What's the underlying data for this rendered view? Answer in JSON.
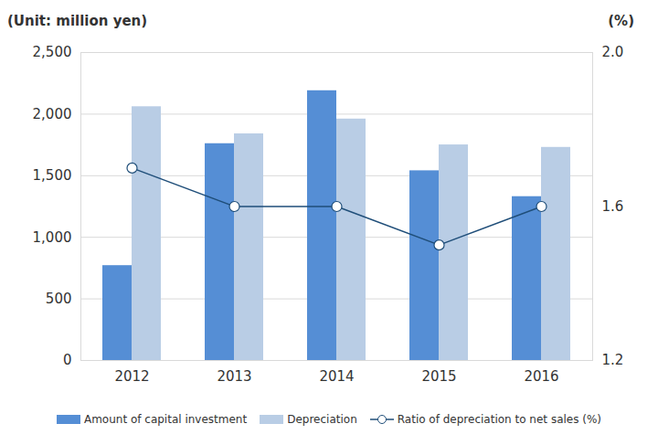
{
  "chart_data": {
    "type": "bar",
    "y_label": "(Unit: million yen)",
    "y2_label": "(%)",
    "categories": [
      "2012",
      "2013",
      "2014",
      "2015",
      "2016"
    ],
    "series": [
      {
        "name": "Amount of capital investment",
        "type": "bar",
        "color": "#558ed5",
        "values": [
          770,
          1760,
          2190,
          1540,
          1330
        ]
      },
      {
        "name": "Depreciation",
        "type": "bar",
        "color": "#b9cde5",
        "values": [
          2060,
          1840,
          1960,
          1750,
          1730
        ]
      },
      {
        "name": "Ratio of depreciation to net sales (%)",
        "type": "line",
        "axis": "y2",
        "color": "#1f4e79",
        "marker": "circle",
        "values": [
          1.7,
          1.6,
          1.6,
          1.5,
          1.6
        ]
      }
    ],
    "ylim": [
      0,
      2500
    ],
    "yticks": [
      0,
      500,
      {
        "value": 1000,
        "label": "1,000"
      },
      {
        "value": 1500,
        "label": "1,500"
      },
      {
        "value": 2000,
        "label": "2,000"
      },
      {
        "value": 2500,
        "label": "2,500"
      }
    ],
    "y2lim": [
      1.2,
      2.0
    ],
    "y2ticks": [
      1.2,
      1.6,
      {
        "value": 2,
        "label": "2.0"
      }
    ],
    "grid": true,
    "legend": "bottom"
  }
}
